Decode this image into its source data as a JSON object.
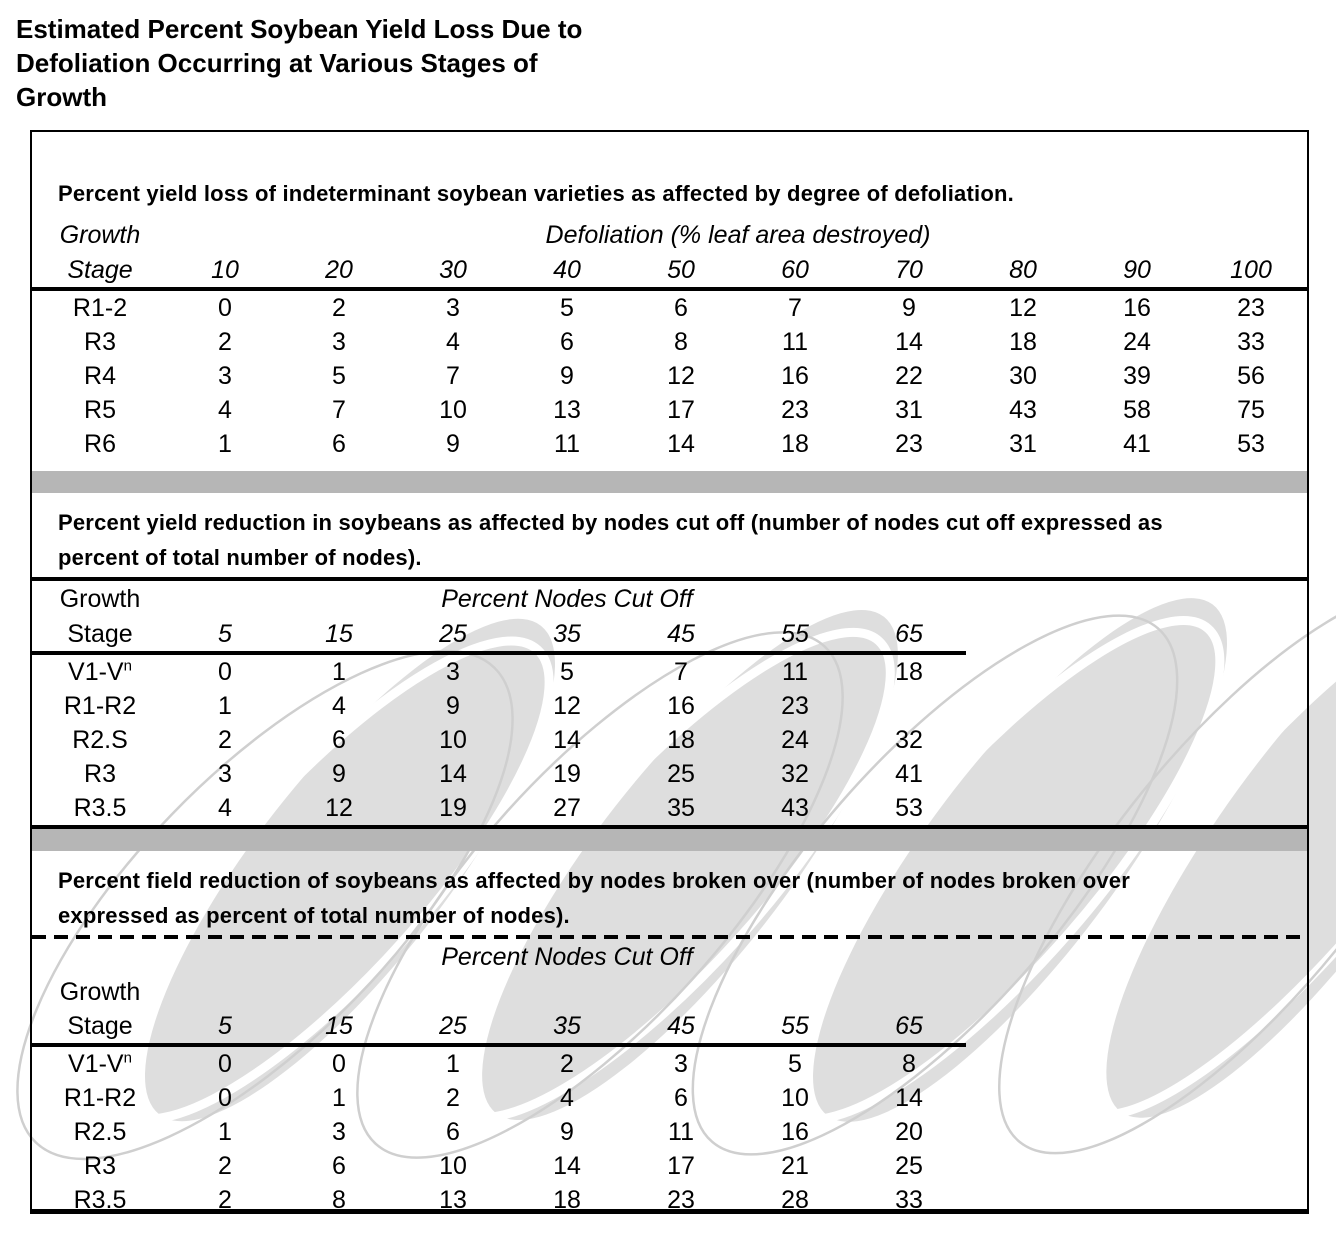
{
  "title": {
    "lines": [
      "Estimated Percent Soybean Yield Loss Due to",
      "Defoliation Occurring at Various Stages of",
      "Growth"
    ]
  },
  "tables": [
    {
      "caption": "Percent yield loss of indeterminant soybean varieties as affected by degree of defoliation.",
      "stage_header": [
        "Growth",
        "Stage"
      ],
      "group_header": "Defoliation (% leaf area destroyed)",
      "columns": [
        "10",
        "20",
        "30",
        "40",
        "50",
        "60",
        "70",
        "80",
        "90",
        "100"
      ],
      "rows": [
        {
          "stage": "R1-2",
          "values": [
            "0",
            "2",
            "3",
            "5",
            "6",
            "7",
            "9",
            "12",
            "16",
            "23"
          ]
        },
        {
          "stage": "R3",
          "values": [
            "2",
            "3",
            "4",
            "6",
            "8",
            "11",
            "14",
            "18",
            "24",
            "33"
          ]
        },
        {
          "stage": "R4",
          "values": [
            "3",
            "5",
            "7",
            "9",
            "12",
            "16",
            "22",
            "30",
            "39",
            "56"
          ]
        },
        {
          "stage": "R5",
          "values": [
            "4",
            "7",
            "10",
            "13",
            "17",
            "23",
            "31",
            "43",
            "58",
            "75"
          ]
        },
        {
          "stage": "R6",
          "values": [
            "1",
            "6",
            "9",
            "11",
            "14",
            "18",
            "23",
            "31",
            "41",
            "53"
          ]
        }
      ]
    },
    {
      "caption": "Percent yield reduction in soybeans as affected by nodes cut off (number of nodes cut off expressed as percent of total number of nodes).",
      "stage_header": [
        "Growth",
        "Stage"
      ],
      "group_header": "Percent Nodes Cut Off",
      "columns": [
        "5",
        "15",
        "25",
        "35",
        "45",
        "55",
        "65"
      ],
      "rows": [
        {
          "stage": "V1-V",
          "stage_sup": "n",
          "values": [
            "0",
            "1",
            "3",
            "5",
            "7",
            "11",
            "18"
          ]
        },
        {
          "stage": "R1-R2",
          "values": [
            "1",
            "4",
            "9",
            "12",
            "16",
            "23",
            ""
          ]
        },
        {
          "stage": "R2.S",
          "values": [
            "2",
            "6",
            "10",
            "14",
            "18",
            "24",
            "32"
          ]
        },
        {
          "stage": "R3",
          "values": [
            "3",
            "9",
            "14",
            "19",
            "25",
            "32",
            "41"
          ]
        },
        {
          "stage": "R3.5",
          "values": [
            "4",
            "12",
            "19",
            "27",
            "35",
            "43",
            "53"
          ]
        }
      ]
    },
    {
      "caption": "Percent field reduction of soybeans as affected by nodes broken over (number of nodes broken over expressed as percent of total number of nodes).",
      "stage_header": [
        "Growth",
        "Stage"
      ],
      "group_header": "Percent Nodes Cut Off",
      "columns": [
        "5",
        "15",
        "25",
        "35",
        "45",
        "55",
        "65"
      ],
      "rows": [
        {
          "stage": "V1-V",
          "stage_sup": "n",
          "values": [
            "0",
            "0",
            "1",
            "2",
            "3",
            "5",
            "8"
          ]
        },
        {
          "stage": "R1-R2",
          "values": [
            "0",
            "1",
            "2",
            "4",
            "6",
            "10",
            "14"
          ]
        },
        {
          "stage": "R2.5",
          "values": [
            "1",
            "3",
            "6",
            "9",
            "11",
            "16",
            "20"
          ]
        },
        {
          "stage": "R3",
          "values": [
            "2",
            "6",
            "10",
            "14",
            "17",
            "21",
            "25"
          ]
        },
        {
          "stage": "R3.5",
          "values": [
            "2",
            "8",
            "13",
            "18",
            "23",
            "28",
            "33"
          ]
        }
      ]
    }
  ],
  "colors": {
    "separator_bar": "#b6b6b6",
    "watermark_fill": "#dedede",
    "watermark_outline": "#cfcfcf",
    "text": "#000000",
    "background": "#ffffff"
  }
}
